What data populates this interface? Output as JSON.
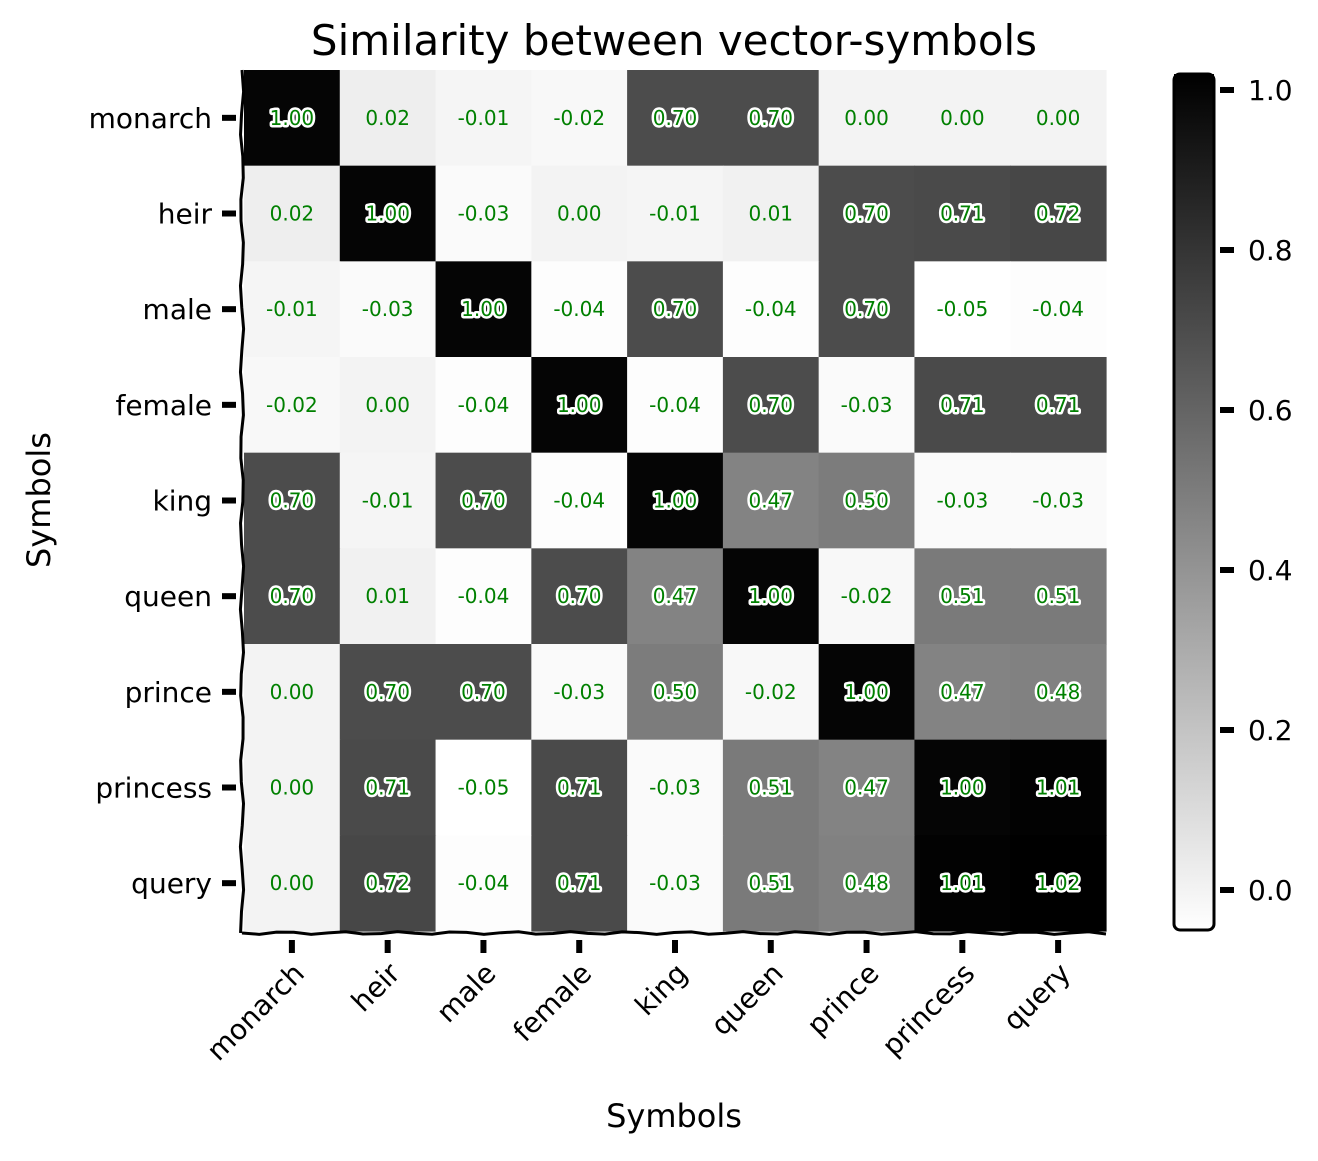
{
  "chart_data": {
    "type": "heatmap",
    "title": "Similarity between vector-symbols",
    "xlabel": "Symbols",
    "ylabel": "Symbols",
    "x_categories": [
      "monarch",
      "heir",
      "male",
      "female",
      "king",
      "queen",
      "prince",
      "princess",
      "query"
    ],
    "y_categories": [
      "monarch",
      "heir",
      "male",
      "female",
      "king",
      "queen",
      "prince",
      "princess",
      "query"
    ],
    "values": [
      [
        1.0,
        0.02,
        -0.01,
        -0.02,
        0.7,
        0.7,
        0.0,
        0.0,
        0.0
      ],
      [
        0.02,
        1.0,
        -0.03,
        -0.0,
        -0.01,
        0.01,
        0.7,
        0.71,
        0.72
      ],
      [
        -0.01,
        -0.03,
        1.0,
        -0.04,
        0.7,
        -0.04,
        0.7,
        -0.05,
        -0.04
      ],
      [
        -0.02,
        -0.0,
        -0.04,
        1.0,
        -0.04,
        0.7,
        -0.03,
        0.71,
        0.71
      ],
      [
        0.7,
        -0.01,
        0.7,
        -0.04,
        1.0,
        0.47,
        0.5,
        -0.03,
        -0.03
      ],
      [
        0.7,
        0.01,
        -0.04,
        0.7,
        0.47,
        1.0,
        -0.02,
        0.51,
        0.51
      ],
      [
        0.0,
        0.7,
        0.7,
        -0.03,
        0.5,
        -0.02,
        1.0,
        0.47,
        0.48
      ],
      [
        0.0,
        0.71,
        -0.05,
        0.71,
        -0.03,
        0.51,
        0.47,
        1.0,
        1.01
      ],
      [
        0.0,
        0.72,
        -0.04,
        0.71,
        -0.03,
        0.51,
        0.48,
        1.01,
        1.02
      ]
    ],
    "value_format": "2 decimals",
    "colormap": "white-to-black (gray reversed)",
    "color_range": [
      -0.05,
      1.02
    ],
    "colorbar": {
      "ticks": [
        0.0,
        0.2,
        0.4,
        0.6,
        0.8,
        1.0
      ],
      "tick_labels": [
        "0.0",
        "0.2",
        "0.4",
        "0.6",
        "0.8",
        "1.0"
      ],
      "placement": "right"
    },
    "cell_label_color": "#008000",
    "halo_threshold": 0.3,
    "grid": false,
    "style": "hand-drawn (xkcd-like) axes"
  }
}
